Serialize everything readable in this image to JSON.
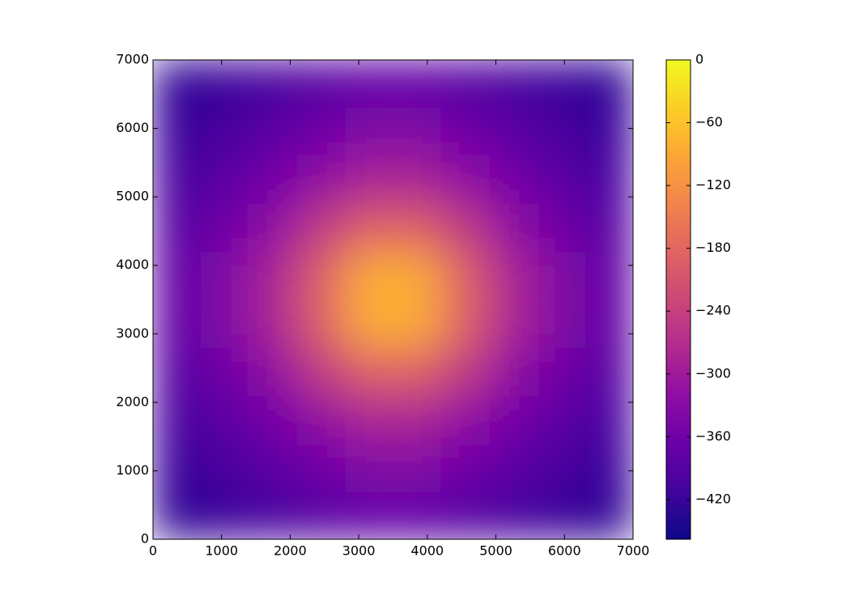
{
  "chart_data": {
    "type": "heatmap",
    "colormap": "plasma",
    "xlim": [
      0,
      7000
    ],
    "ylim": [
      0,
      7000
    ],
    "xticks": [
      0,
      1000,
      2000,
      3000,
      4000,
      5000,
      6000,
      7000
    ],
    "yticks": [
      0,
      1000,
      2000,
      3000,
      4000,
      5000,
      6000,
      7000
    ],
    "z": [
      [
        -431,
        -419,
        -405,
        -390,
        -376,
        -376,
        -390,
        -405,
        -419,
        -431
      ],
      [
        -419,
        -403,
        -382,
        -359,
        -338,
        -338,
        -359,
        -382,
        -403,
        -419
      ],
      [
        -405,
        -382,
        -353,
        -318,
        -284,
        -284,
        -318,
        -353,
        -382,
        -405
      ],
      [
        -390,
        -359,
        -318,
        -250,
        -190,
        -190,
        -250,
        -318,
        -359,
        -390
      ],
      [
        -376,
        -338,
        -284,
        -190,
        -85,
        -85,
        -190,
        -284,
        -338,
        -376
      ],
      [
        -376,
        -338,
        -284,
        -190,
        -85,
        -85,
        -190,
        -284,
        -338,
        -376
      ],
      [
        -390,
        -359,
        -318,
        -250,
        -190,
        -190,
        -250,
        -318,
        -359,
        -390
      ],
      [
        -405,
        -382,
        -353,
        -318,
        -284,
        -284,
        -318,
        -353,
        -382,
        -405
      ],
      [
        -419,
        -403,
        -382,
        -359,
        -338,
        -338,
        -359,
        -382,
        -403,
        -419
      ],
      [
        -431,
        -419,
        -405,
        -390,
        -376,
        -376,
        -390,
        -405,
        -419,
        -431
      ]
    ],
    "clim": [
      -458,
      0
    ],
    "cticks": [
      0,
      {
        "value": -60,
        "label": "−60"
      },
      {
        "value": -120,
        "label": "−120"
      },
      {
        "value": -180,
        "label": "−180"
      },
      {
        "value": -240,
        "label": "−240"
      },
      {
        "value": -300,
        "label": "−300"
      },
      {
        "value": -360,
        "label": "−360"
      },
      {
        "value": -420,
        "label": "−420"
      }
    ]
  }
}
